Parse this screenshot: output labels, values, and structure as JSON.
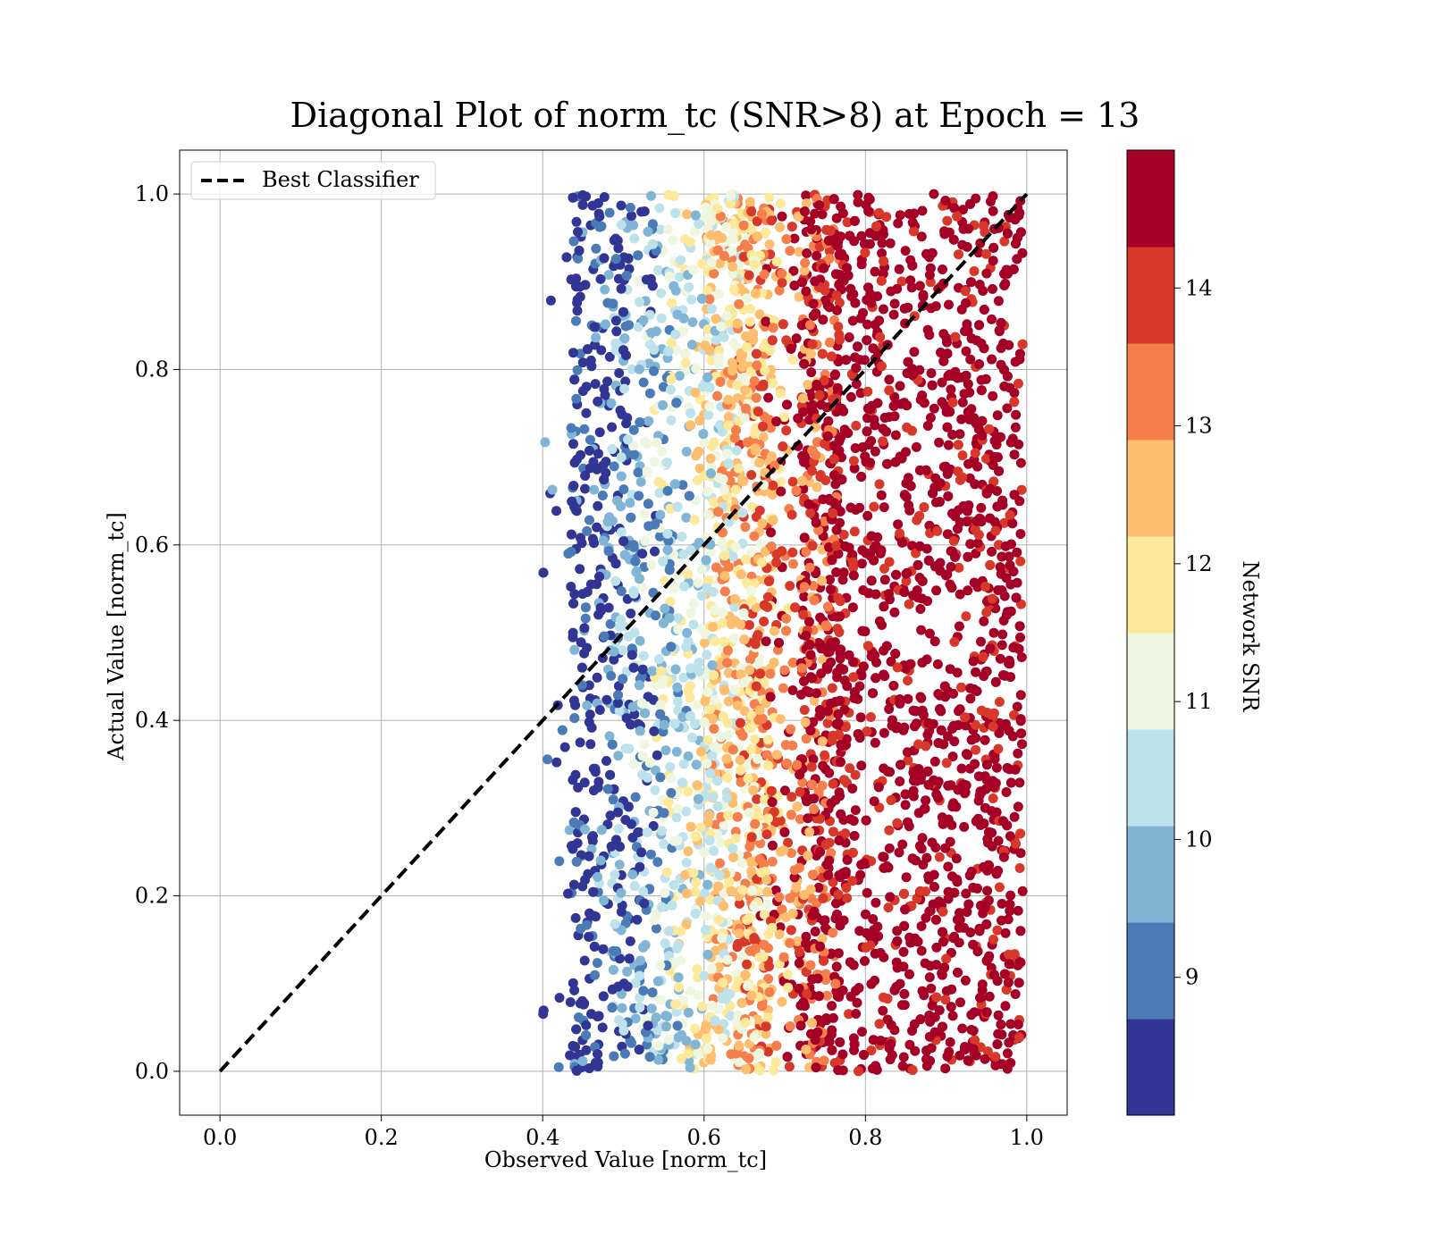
{
  "chart_data": {
    "type": "scatter",
    "title": "Diagonal Plot of norm_tc (SNR>8) at Epoch = 13",
    "xlabel": "Observed Value [norm_tc]",
    "ylabel": "Actual Value [norm_tc]",
    "xlim": [
      -0.05,
      1.05
    ],
    "ylim": [
      -0.05,
      1.05
    ],
    "x_ticks": [
      "0.0",
      "0.2",
      "0.4",
      "0.6",
      "0.8",
      "1.0"
    ],
    "y_ticks": [
      "0.0",
      "0.2",
      "0.4",
      "0.6",
      "0.8",
      "1.0"
    ],
    "grid": true,
    "legend": {
      "placement": "upper-left",
      "entries": [
        "Best Classifier"
      ]
    },
    "reference_line": {
      "label": "Best Classifier",
      "x": [
        0.0,
        1.0
      ],
      "y": [
        0.0,
        1.0
      ],
      "style": "dashed",
      "color": "#000000"
    },
    "scatter_extent": {
      "x_min": 0.4,
      "x_max": 1.0,
      "y_min": 0.0,
      "y_max": 1.0
    },
    "colorbar": {
      "label": "Network SNR",
      "range": [
        8.0,
        15.0
      ],
      "ticks": [
        "9",
        "10",
        "11",
        "12",
        "13",
        "14"
      ],
      "bins": [
        {
          "from": 8.0,
          "to": 8.7,
          "color": "#313695"
        },
        {
          "from": 8.7,
          "to": 9.4,
          "color": "#4a7bb7"
        },
        {
          "from": 9.4,
          "to": 10.1,
          "color": "#81b5d6"
        },
        {
          "from": 10.1,
          "to": 10.8,
          "color": "#bde2ec"
        },
        {
          "from": 10.8,
          "to": 11.5,
          "color": "#eef6df"
        },
        {
          "from": 11.5,
          "to": 12.2,
          "color": "#fee99b"
        },
        {
          "from": 12.2,
          "to": 12.9,
          "color": "#fdbf6f"
        },
        {
          "from": 12.9,
          "to": 13.6,
          "color": "#f47e4c"
        },
        {
          "from": 13.6,
          "to": 14.3,
          "color": "#d7382a"
        },
        {
          "from": 14.3,
          "to": 15.0,
          "color": "#a50026"
        }
      ]
    }
  }
}
